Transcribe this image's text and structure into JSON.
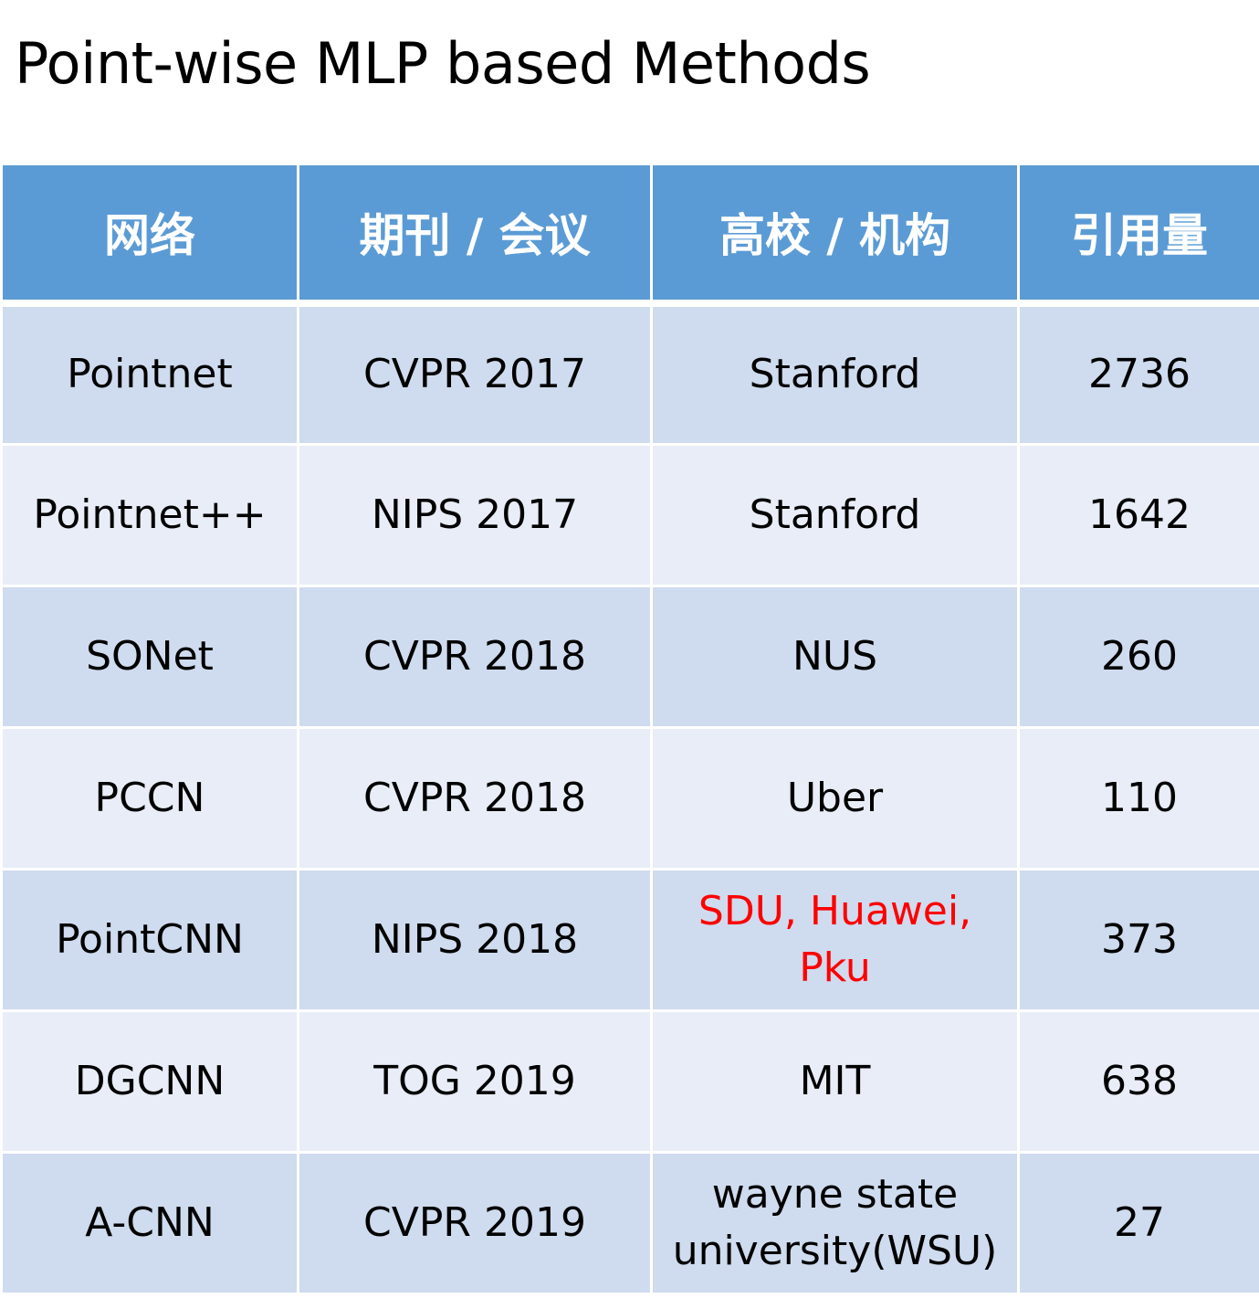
{
  "title": "Point-wise MLP based Methods",
  "table": {
    "headers": [
      "网络",
      "期刊 / 会议",
      "高校 / 机构",
      "引用量"
    ],
    "rows": [
      {
        "network": "Pointnet",
        "venue": "CVPR 2017",
        "institution": "Stanford",
        "citations": "2736",
        "highlight": false
      },
      {
        "network": "Pointnet++",
        "venue": "NIPS 2017",
        "institution": "Stanford",
        "citations": "1642",
        "highlight": false
      },
      {
        "network": "SONet",
        "venue": "CVPR 2018",
        "institution": "NUS",
        "citations": "260",
        "highlight": false
      },
      {
        "network": "PCCN",
        "venue": "CVPR 2018",
        "institution": "Uber",
        "citations": "110",
        "highlight": false
      },
      {
        "network": "PointCNN",
        "venue": "NIPS 2018",
        "institution": "SDU, Huawei, Pku",
        "citations": "373",
        "highlight": true
      },
      {
        "network": "DGCNN",
        "venue": "TOG 2019",
        "institution": "MIT",
        "citations": "638",
        "highlight": false
      },
      {
        "network": "A-CNN",
        "venue": "CVPR 2019",
        "institution": "wayne state university(WSU)",
        "citations": "27",
        "highlight": false
      }
    ]
  },
  "colors": {
    "header_bg": "#5b9bd5",
    "row_odd_bg": "#cfdbee",
    "row_even_bg": "#e8edf7",
    "highlight_text": "#ff0000"
  }
}
